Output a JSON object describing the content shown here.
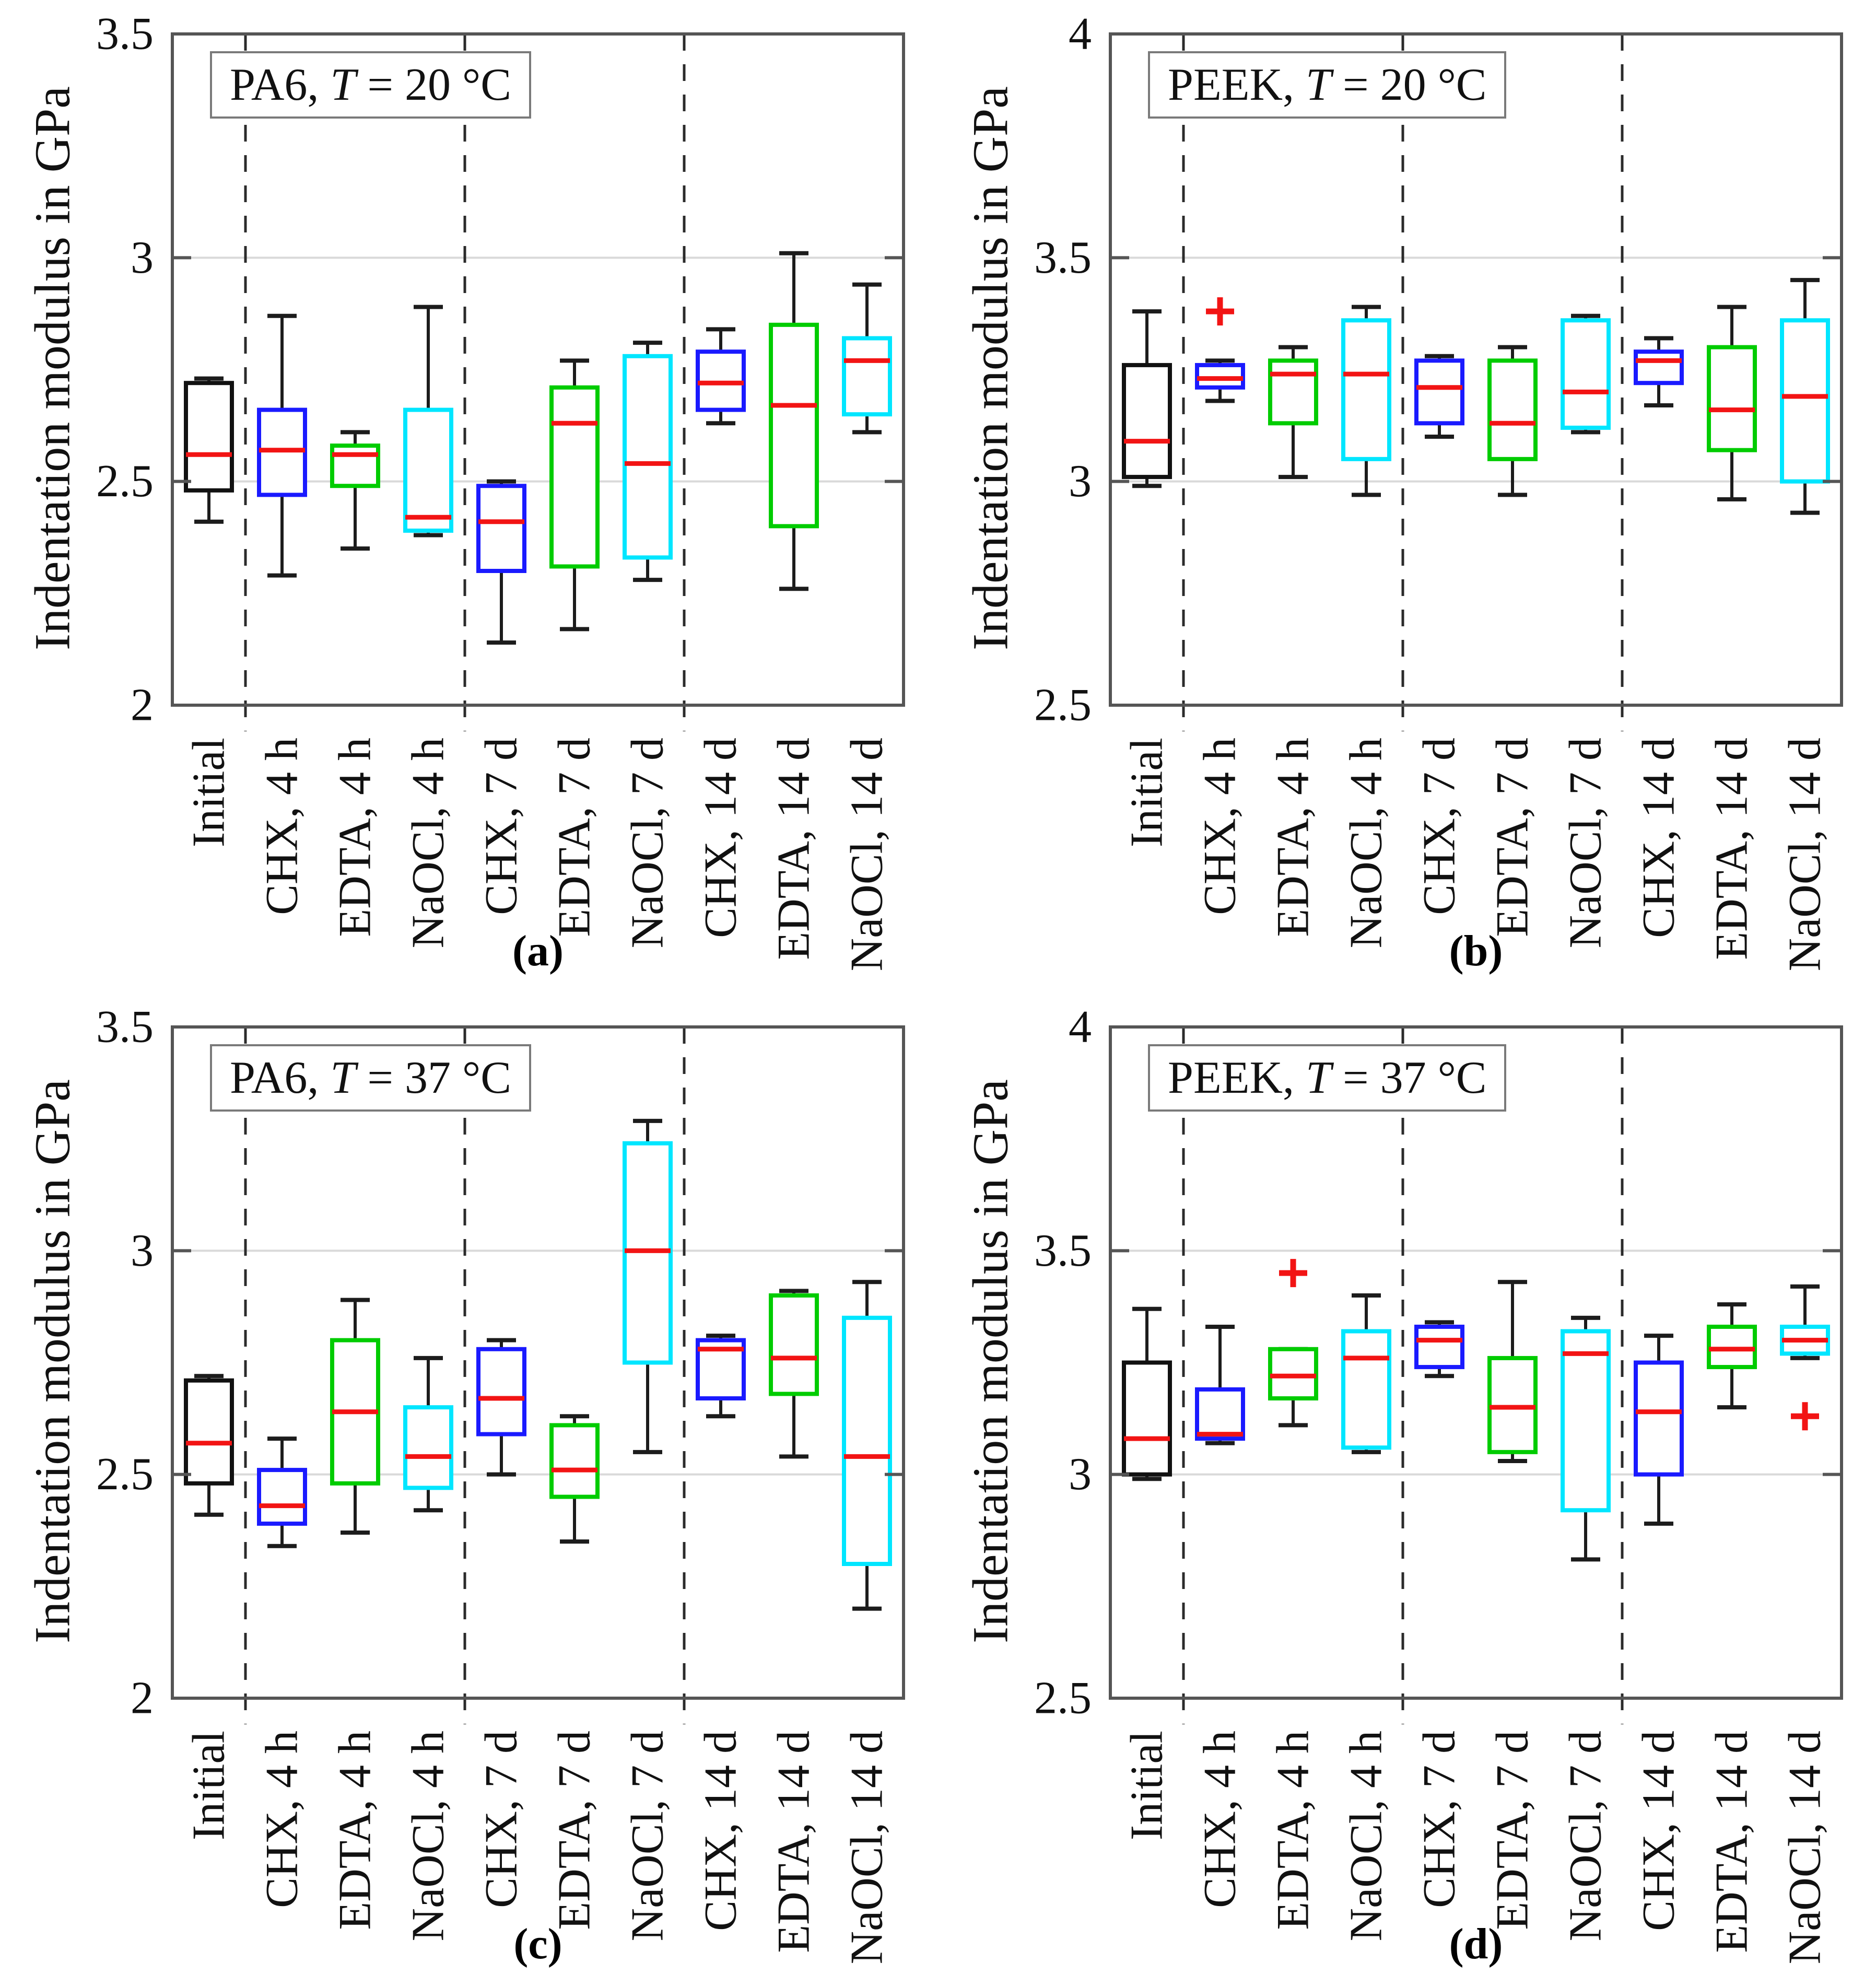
{
  "figure": {
    "ylabel": "Indentation modulus in GPa",
    "t_symbol": "T",
    "equals": "= ",
    "space": " ",
    "palette": {
      "black": "#111111",
      "blue": "#1a1aff",
      "green": "#00cc00",
      "cyan": "#00e6ff"
    },
    "median_color": "#f21414",
    "outlier_color": "#f21414",
    "whisker_color": "#1c1c1c",
    "grid_color": "#d9d9d9",
    "frame_color": "#555555",
    "separator_color": "#2b2b2b",
    "tick_text_color": "#111111",
    "separator_after": [
      0,
      3,
      6
    ]
  },
  "chart_data": [
    {
      "type": "box",
      "label": "(a)",
      "material": "PA6,",
      "temperature": "20 °C",
      "title_text": "PA6, T = 20 °C",
      "ylabel": "Indentation modulus in GPa",
      "ylim": [
        2,
        3.5
      ],
      "yticks": [
        2,
        2.5,
        3,
        3.5
      ],
      "ytick_labels": [
        "2",
        "2.5",
        "3",
        "3.5"
      ],
      "grid": true,
      "legend": "none",
      "boxes": [
        {
          "category": "Initial",
          "color": "black",
          "whisker_low": 2.41,
          "q1": 2.48,
          "median": 2.56,
          "q3": 2.72,
          "whisker_high": 2.73,
          "outliers": []
        },
        {
          "category": "CHX, 4 h",
          "color": "blue",
          "whisker_low": 2.29,
          "q1": 2.47,
          "median": 2.57,
          "q3": 2.66,
          "whisker_high": 2.87,
          "outliers": []
        },
        {
          "category": "EDTA, 4 h",
          "color": "green",
          "whisker_low": 2.35,
          "q1": 2.49,
          "median": 2.56,
          "q3": 2.58,
          "whisker_high": 2.61,
          "outliers": []
        },
        {
          "category": "NaOCl, 4 h",
          "color": "cyan",
          "whisker_low": 2.38,
          "q1": 2.39,
          "median": 2.42,
          "q3": 2.66,
          "whisker_high": 2.89,
          "outliers": []
        },
        {
          "category": "CHX, 7 d",
          "color": "blue",
          "whisker_low": 2.14,
          "q1": 2.3,
          "median": 2.41,
          "q3": 2.49,
          "whisker_high": 2.5,
          "outliers": []
        },
        {
          "category": "EDTA, 7 d",
          "color": "green",
          "whisker_low": 2.17,
          "q1": 2.31,
          "median": 2.63,
          "q3": 2.71,
          "whisker_high": 2.77,
          "outliers": []
        },
        {
          "category": "NaOCl, 7 d",
          "color": "cyan",
          "whisker_low": 2.28,
          "q1": 2.33,
          "median": 2.54,
          "q3": 2.78,
          "whisker_high": 2.81,
          "outliers": []
        },
        {
          "category": "CHX, 14 d",
          "color": "blue",
          "whisker_low": 2.63,
          "q1": 2.66,
          "median": 2.72,
          "q3": 2.79,
          "whisker_high": 2.84,
          "outliers": []
        },
        {
          "category": "EDTA, 14 d",
          "color": "green",
          "whisker_low": 2.26,
          "q1": 2.4,
          "median": 2.67,
          "q3": 2.85,
          "whisker_high": 3.01,
          "outliers": []
        },
        {
          "category": "NaOCl, 14 d",
          "color": "cyan",
          "whisker_low": 2.61,
          "q1": 2.65,
          "median": 2.77,
          "q3": 2.82,
          "whisker_high": 2.94,
          "outliers": []
        }
      ]
    },
    {
      "type": "box",
      "label": "(b)",
      "material": "PEEK,",
      "temperature": "20 °C",
      "title_text": "PEEK, T = 20 °C",
      "ylabel": "Indentation modulus in GPa",
      "ylim": [
        2.5,
        4
      ],
      "yticks": [
        2.5,
        3,
        3.5,
        4
      ],
      "ytick_labels": [
        "2.5",
        "3",
        "3.5",
        "4"
      ],
      "grid": true,
      "legend": "none",
      "boxes": [
        {
          "category": "Initial",
          "color": "black",
          "whisker_low": 2.99,
          "q1": 3.01,
          "median": 3.09,
          "q3": 3.26,
          "whisker_high": 3.38,
          "outliers": []
        },
        {
          "category": "CHX, 4 h",
          "color": "blue",
          "whisker_low": 3.18,
          "q1": 3.21,
          "median": 3.23,
          "q3": 3.26,
          "whisker_high": 3.27,
          "outliers": [
            3.38
          ]
        },
        {
          "category": "EDTA, 4 h",
          "color": "green",
          "whisker_low": 3.01,
          "q1": 3.13,
          "median": 3.24,
          "q3": 3.27,
          "whisker_high": 3.3,
          "outliers": []
        },
        {
          "category": "NaOCl, 4 h",
          "color": "cyan",
          "whisker_low": 2.97,
          "q1": 3.05,
          "median": 3.24,
          "q3": 3.36,
          "whisker_high": 3.39,
          "outliers": []
        },
        {
          "category": "CHX, 7 d",
          "color": "blue",
          "whisker_low": 3.1,
          "q1": 3.13,
          "median": 3.21,
          "q3": 3.27,
          "whisker_high": 3.28,
          "outliers": []
        },
        {
          "category": "EDTA, 7 d",
          "color": "green",
          "whisker_low": 2.97,
          "q1": 3.05,
          "median": 3.13,
          "q3": 3.27,
          "whisker_high": 3.3,
          "outliers": []
        },
        {
          "category": "NaOCl, 7 d",
          "color": "cyan",
          "whisker_low": 3.11,
          "q1": 3.12,
          "median": 3.2,
          "q3": 3.36,
          "whisker_high": 3.37,
          "outliers": []
        },
        {
          "category": "CHX, 14 d",
          "color": "blue",
          "whisker_low": 3.17,
          "q1": 3.22,
          "median": 3.27,
          "q3": 3.29,
          "whisker_high": 3.32,
          "outliers": []
        },
        {
          "category": "EDTA, 14 d",
          "color": "green",
          "whisker_low": 2.96,
          "q1": 3.07,
          "median": 3.16,
          "q3": 3.3,
          "whisker_high": 3.39,
          "outliers": []
        },
        {
          "category": "NaOCl, 14 d",
          "color": "cyan",
          "whisker_low": 2.93,
          "q1": 3.0,
          "median": 3.19,
          "q3": 3.36,
          "whisker_high": 3.45,
          "outliers": []
        }
      ]
    },
    {
      "type": "box",
      "label": "(c)",
      "material": "PA6,",
      "temperature": "37 °C",
      "title_text": "PA6, T = 37 °C",
      "ylabel": "Indentation modulus in GPa",
      "ylim": [
        2,
        3.5
      ],
      "yticks": [
        2,
        2.5,
        3,
        3.5
      ],
      "ytick_labels": [
        "2",
        "2.5",
        "3",
        "3.5"
      ],
      "grid": true,
      "legend": "none",
      "boxes": [
        {
          "category": "Initial",
          "color": "black",
          "whisker_low": 2.41,
          "q1": 2.48,
          "median": 2.57,
          "q3": 2.71,
          "whisker_high": 2.72,
          "outliers": []
        },
        {
          "category": "CHX, 4 h",
          "color": "blue",
          "whisker_low": 2.34,
          "q1": 2.39,
          "median": 2.43,
          "q3": 2.51,
          "whisker_high": 2.58,
          "outliers": []
        },
        {
          "category": "EDTA, 4 h",
          "color": "green",
          "whisker_low": 2.37,
          "q1": 2.48,
          "median": 2.64,
          "q3": 2.8,
          "whisker_high": 2.89,
          "outliers": []
        },
        {
          "category": "NaOCl, 4 h",
          "color": "cyan",
          "whisker_low": 2.42,
          "q1": 2.47,
          "median": 2.54,
          "q3": 2.65,
          "whisker_high": 2.76,
          "outliers": []
        },
        {
          "category": "CHX, 7 d",
          "color": "blue",
          "whisker_low": 2.5,
          "q1": 2.59,
          "median": 2.67,
          "q3": 2.78,
          "whisker_high": 2.8,
          "outliers": []
        },
        {
          "category": "EDTA, 7 d",
          "color": "green",
          "whisker_low": 2.35,
          "q1": 2.45,
          "median": 2.51,
          "q3": 2.61,
          "whisker_high": 2.63,
          "outliers": []
        },
        {
          "category": "NaOCl, 7 d",
          "color": "cyan",
          "whisker_low": 2.55,
          "q1": 2.75,
          "median": 3.0,
          "q3": 3.24,
          "whisker_high": 3.29,
          "outliers": []
        },
        {
          "category": "CHX, 14 d",
          "color": "blue",
          "whisker_low": 2.63,
          "q1": 2.67,
          "median": 2.78,
          "q3": 2.8,
          "whisker_high": 2.81,
          "outliers": []
        },
        {
          "category": "EDTA, 14 d",
          "color": "green",
          "whisker_low": 2.54,
          "q1": 2.68,
          "median": 2.76,
          "q3": 2.9,
          "whisker_high": 2.91,
          "outliers": []
        },
        {
          "category": "NaOCl, 14 d",
          "color": "cyan",
          "whisker_low": 2.2,
          "q1": 2.3,
          "median": 2.54,
          "q3": 2.85,
          "whisker_high": 2.93,
          "outliers": []
        }
      ]
    },
    {
      "type": "box",
      "label": "(d)",
      "material": "PEEK,",
      "temperature": "37 °C",
      "title_text": "PEEK, T = 37 °C",
      "ylabel": "Indentation modulus in GPa",
      "ylim": [
        2.5,
        4
      ],
      "yticks": [
        2.5,
        3,
        3.5,
        4
      ],
      "ytick_labels": [
        "2.5",
        "3",
        "3.5",
        "4"
      ],
      "grid": true,
      "legend": "none",
      "boxes": [
        {
          "category": "Initial",
          "color": "black",
          "whisker_low": 2.99,
          "q1": 3.0,
          "median": 3.08,
          "q3": 3.25,
          "whisker_high": 3.37,
          "outliers": []
        },
        {
          "category": "CHX, 4 h",
          "color": "blue",
          "whisker_low": 3.07,
          "q1": 3.08,
          "median": 3.09,
          "q3": 3.19,
          "whisker_high": 3.33,
          "outliers": []
        },
        {
          "category": "EDTA, 4 h",
          "color": "green",
          "whisker_low": 3.11,
          "q1": 3.17,
          "median": 3.22,
          "q3": 3.28,
          "whisker_high": 3.28,
          "outliers": [
            3.45
          ]
        },
        {
          "category": "NaOCl, 4 h",
          "color": "cyan",
          "whisker_low": 3.05,
          "q1": 3.06,
          "median": 3.26,
          "q3": 3.32,
          "whisker_high": 3.4,
          "outliers": []
        },
        {
          "category": "CHX, 7 d",
          "color": "blue",
          "whisker_low": 3.22,
          "q1": 3.24,
          "median": 3.3,
          "q3": 3.33,
          "whisker_high": 3.34,
          "outliers": []
        },
        {
          "category": "EDTA, 7 d",
          "color": "green",
          "whisker_low": 3.03,
          "q1": 3.05,
          "median": 3.15,
          "q3": 3.26,
          "whisker_high": 3.43,
          "outliers": []
        },
        {
          "category": "NaOCl, 7 d",
          "color": "cyan",
          "whisker_low": 2.81,
          "q1": 2.92,
          "median": 3.27,
          "q3": 3.32,
          "whisker_high": 3.35,
          "outliers": []
        },
        {
          "category": "CHX, 14 d",
          "color": "blue",
          "whisker_low": 2.89,
          "q1": 3.0,
          "median": 3.14,
          "q3": 3.25,
          "whisker_high": 3.31,
          "outliers": []
        },
        {
          "category": "EDTA, 14 d",
          "color": "green",
          "whisker_low": 3.15,
          "q1": 3.24,
          "median": 3.28,
          "q3": 3.33,
          "whisker_high": 3.38,
          "outliers": []
        },
        {
          "category": "NaOCl, 14 d",
          "color": "cyan",
          "whisker_low": 3.26,
          "q1": 3.27,
          "median": 3.3,
          "q3": 3.33,
          "whisker_high": 3.42,
          "outliers": [
            3.13
          ]
        }
      ]
    }
  ]
}
